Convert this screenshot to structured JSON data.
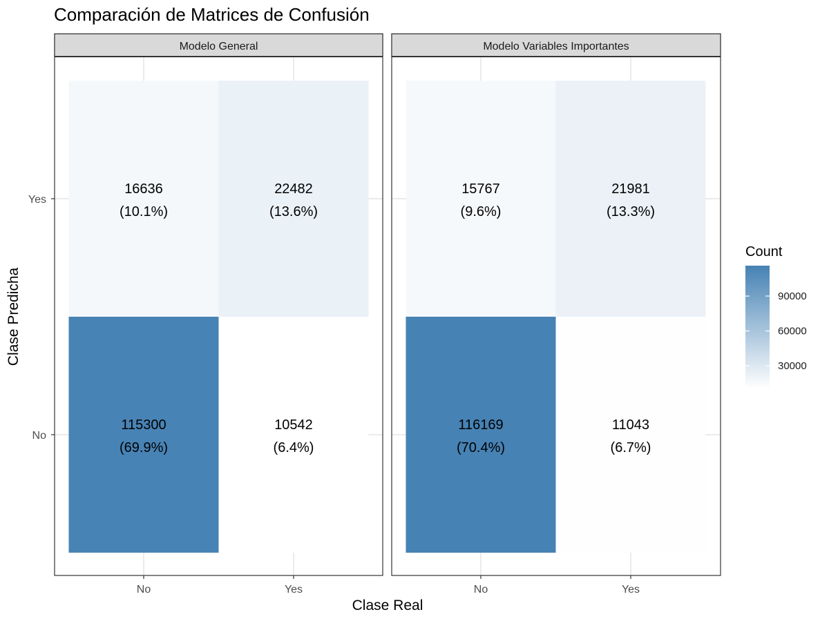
{
  "chart_data": {
    "type": "heatmap",
    "title": "Comparación de Matrices de Confusión",
    "xlabel": "Clase Real",
    "ylabel": "Clase Predicha",
    "x_categories": [
      "No",
      "Yes"
    ],
    "y_categories": [
      "No",
      "Yes"
    ],
    "legend": {
      "title": "Count",
      "placement": "right",
      "ticks": [
        30000,
        60000,
        90000
      ],
      "tick_labels": [
        "30000",
        "60000",
        "90000"
      ],
      "range": [
        10542,
        116169
      ],
      "low_color": "#ffffff",
      "high_color": "#4682b4"
    },
    "grid": true,
    "panels": [
      {
        "name": "Modelo General",
        "cells": [
          {
            "real": "No",
            "pred": "Yes",
            "count": 16636,
            "pct": "(10.1%)"
          },
          {
            "real": "Yes",
            "pred": "Yes",
            "count": 22482,
            "pct": "(13.6%)"
          },
          {
            "real": "No",
            "pred": "No",
            "count": 115300,
            "pct": "(69.9%)"
          },
          {
            "real": "Yes",
            "pred": "No",
            "count": 10542,
            "pct": "(6.4%)"
          }
        ]
      },
      {
        "name": "Modelo Variables Importantes",
        "cells": [
          {
            "real": "No",
            "pred": "Yes",
            "count": 15767,
            "pct": "(9.6%)"
          },
          {
            "real": "Yes",
            "pred": "Yes",
            "count": 21981,
            "pct": "(13.3%)"
          },
          {
            "real": "No",
            "pred": "No",
            "count": 116169,
            "pct": "(70.4%)"
          },
          {
            "real": "Yes",
            "pred": "No",
            "count": 11043,
            "pct": "(6.7%)"
          }
        ]
      }
    ]
  }
}
